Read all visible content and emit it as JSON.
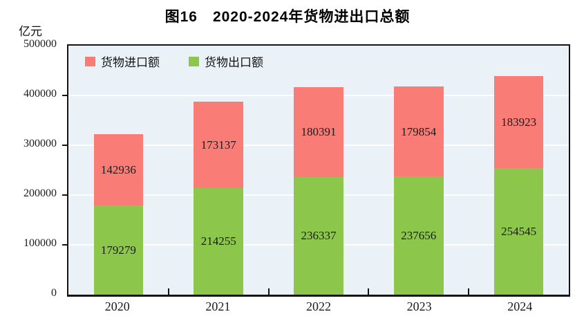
{
  "chart_data": {
    "type": "bar",
    "stacked": true,
    "title": "图16　2020-2024年货物进出口总额",
    "unit_label": "亿元",
    "categories": [
      "2020",
      "2021",
      "2022",
      "2023",
      "2024"
    ],
    "series": [
      {
        "name": "货物进口额",
        "color": "#F97D76",
        "values": [
          142936,
          173137,
          180391,
          179854,
          183923
        ]
      },
      {
        "name": "货物出口额",
        "color": "#8CC74B",
        "values": [
          179279,
          214255,
          236337,
          237656,
          254545
        ]
      }
    ],
    "stack_bottom_series": "货物出口额",
    "xlabel": "",
    "ylabel": "亿元",
    "ylim": [
      0,
      500000
    ],
    "yticks": [
      0,
      100000,
      200000,
      300000,
      400000,
      500000
    ],
    "grid": true,
    "legend_position": "top-left",
    "colors": {
      "plot_background": "#EAF2F7",
      "gridline": "#FFFFFF",
      "axis_border": "#141414",
      "title_text": "#000000",
      "value_label_text": "#1B1B1B"
    }
  }
}
